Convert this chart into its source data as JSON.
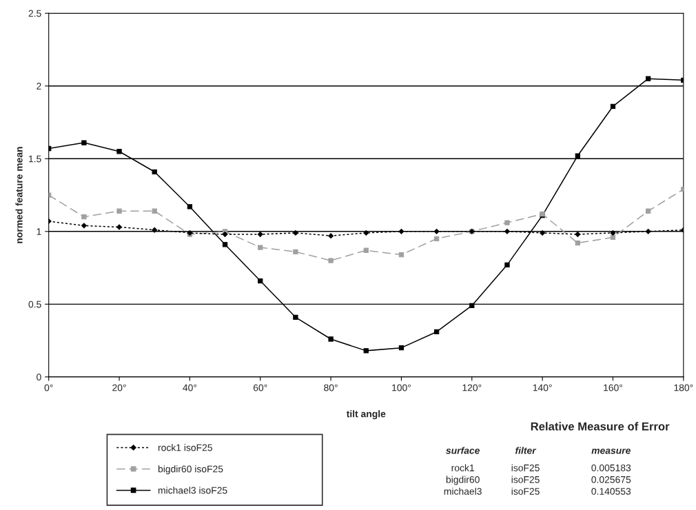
{
  "chart_data": {
    "type": "line",
    "xlabel": "tilt angle",
    "ylabel": "normed feature mean",
    "x": [
      0,
      10,
      20,
      30,
      40,
      50,
      60,
      70,
      80,
      90,
      100,
      110,
      120,
      130,
      140,
      150,
      160,
      170,
      180
    ],
    "xlim": [
      0,
      180
    ],
    "xticks": [
      {
        "value": 0,
        "label": "0°"
      },
      {
        "value": 20,
        "label": "20°"
      },
      {
        "value": 40,
        "label": "40°"
      },
      {
        "value": 60,
        "label": "60°"
      },
      {
        "value": 80,
        "label": "80°"
      },
      {
        "value": 100,
        "label": "100°"
      },
      {
        "value": 120,
        "label": "120°"
      },
      {
        "value": 140,
        "label": "140°"
      },
      {
        "value": 160,
        "label": "160°"
      },
      {
        "value": 180,
        "label": "180°"
      }
    ],
    "ylim": [
      0,
      2.5
    ],
    "yticks": [
      0,
      0.5,
      1,
      1.5,
      2,
      2.5
    ],
    "grid": "y",
    "legend": "bottom left",
    "series": [
      {
        "name": "rock1 isoF25",
        "color": "#000000",
        "marker": "diamond",
        "line_style": "dotted",
        "values": [
          1.07,
          1.04,
          1.03,
          1.01,
          0.99,
          0.98,
          0.98,
          0.99,
          0.97,
          0.99,
          1.0,
          1.0,
          1.0,
          1.0,
          0.99,
          0.98,
          0.99,
          1.0,
          1.01
        ]
      },
      {
        "name": "bigdir60 isoF25",
        "color": "#a0a0a0",
        "marker": "square",
        "line_style": "dashed",
        "values": [
          1.25,
          1.1,
          1.14,
          1.14,
          0.98,
          1.0,
          0.89,
          0.86,
          0.8,
          0.87,
          0.84,
          0.95,
          1.0,
          1.06,
          1.12,
          0.92,
          0.96,
          1.14,
          1.29
        ]
      },
      {
        "name": "michael3 isoF25",
        "color": "#000000",
        "marker": "square",
        "line_style": "solid",
        "values": [
          1.57,
          1.61,
          1.55,
          1.41,
          1.17,
          0.91,
          0.66,
          0.41,
          0.26,
          0.18,
          0.2,
          0.31,
          0.49,
          0.77,
          1.11,
          1.52,
          1.86,
          2.05,
          2.04
        ]
      }
    ],
    "annotations": [
      "Relative Measure of Error",
      "surface",
      "filter",
      "measure",
      "rock1",
      "isoF25",
      "0.005183",
      "bigdir60",
      "isoF25",
      "0.025675",
      "michael3",
      "isoF25",
      "0.140553"
    ]
  }
}
